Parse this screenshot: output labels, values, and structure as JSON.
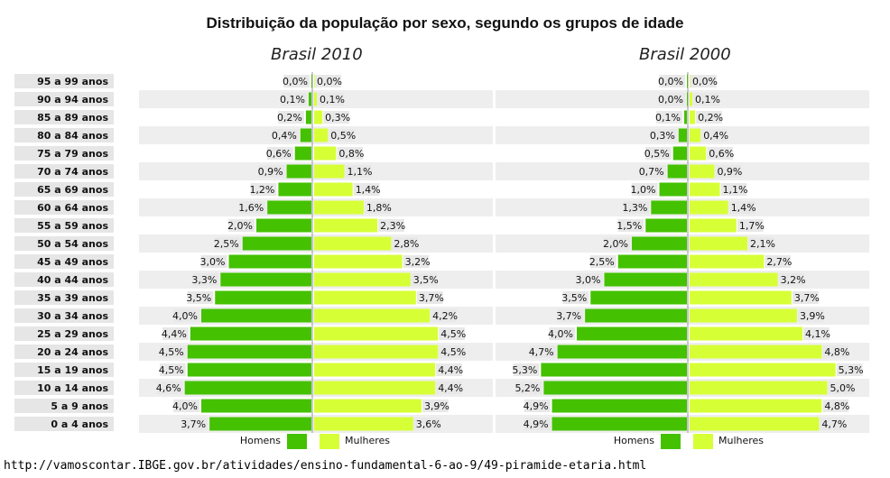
{
  "title": "Distribuição da população por sexo, segundo os grupos de idade",
  "footer_url": "http://vamoscontar.IBGE.gov.br/atividades/ensino-fundamental-6-ao-9/49-piramide-etaria.html",
  "colors": {
    "men": "#44c100",
    "women": "#d7ff36",
    "stripe": "#eeeeee",
    "label_bg": "#e6e6e6"
  },
  "chart_data": [
    {
      "type": "bar",
      "subtype": "population-pyramid",
      "title": "Brasil 2010",
      "categories": [
        "95 a 99 anos",
        "90 a 94 anos",
        "85 a 89 anos",
        "80 a 84 anos",
        "75 a 79 anos",
        "70 a 74 anos",
        "65 a 69 anos",
        "60 a 64 anos",
        "55 a 59 anos",
        "50 a 54 anos",
        "45 a 49 anos",
        "40 a 44 anos",
        "35 a 39 anos",
        "30 a 34 anos",
        "25 a 29 anos",
        "20 a 24 anos",
        "15 a 19 anos",
        "10 a 14 anos",
        "5 a 9 anos",
        "0 a 4 anos"
      ],
      "series": [
        {
          "name": "Homens",
          "values": [
            0.0,
            0.1,
            0.2,
            0.4,
            0.6,
            0.9,
            1.2,
            1.6,
            2.0,
            2.5,
            3.0,
            3.3,
            3.5,
            4.0,
            4.4,
            4.5,
            4.5,
            4.6,
            4.0,
            3.7
          ],
          "labels": [
            "0,0%",
            "0,1%",
            "0,2%",
            "0,4%",
            "0,6%",
            "0,9%",
            "1,2%",
            "1,6%",
            "2,0%",
            "2,5%",
            "3,0%",
            "3,3%",
            "3,5%",
            "4,0%",
            "4,4%",
            "4,5%",
            "4,5%",
            "4,6%",
            "4,0%",
            "3,7%"
          ]
        },
        {
          "name": "Mulheres",
          "values": [
            0.0,
            0.1,
            0.3,
            0.5,
            0.8,
            1.1,
            1.4,
            1.8,
            2.3,
            2.8,
            3.2,
            3.5,
            3.7,
            4.2,
            4.5,
            4.5,
            4.4,
            4.4,
            3.9,
            3.6
          ],
          "labels": [
            "0,0%",
            "0,1%",
            "0,3%",
            "0,5%",
            "0,8%",
            "1,1%",
            "1,4%",
            "1,8%",
            "2,3%",
            "2,8%",
            "3,2%",
            "3,5%",
            "3,7%",
            "4,2%",
            "4,5%",
            "4,5%",
            "4,4%",
            "4,4%",
            "3,9%",
            "3,6%"
          ]
        }
      ],
      "legend": "bottom"
    },
    {
      "type": "bar",
      "subtype": "population-pyramid",
      "title": "Brasil 2000",
      "categories": [
        "95 a 99 anos",
        "90 a 94 anos",
        "85 a 89 anos",
        "80 a 84 anos",
        "75 a 79 anos",
        "70 a 74 anos",
        "65 a 69 anos",
        "60 a 64 anos",
        "55 a 59 anos",
        "50 a 54 anos",
        "45 a 49 anos",
        "40 a 44 anos",
        "35 a 39 anos",
        "30 a 34 anos",
        "25 a 29 anos",
        "20 a 24 anos",
        "15 a 19 anos",
        "10 a 14 anos",
        "5 a 9 anos",
        "0 a 4 anos"
      ],
      "series": [
        {
          "name": "Homens",
          "values": [
            0.0,
            0.0,
            0.1,
            0.3,
            0.5,
            0.7,
            1.0,
            1.3,
            1.5,
            2.0,
            2.5,
            3.0,
            3.5,
            3.7,
            4.0,
            4.7,
            5.3,
            5.2,
            4.9,
            4.9
          ],
          "labels": [
            "0,0%",
            "0,0%",
            "0,1%",
            "0,3%",
            "0,5%",
            "0,7%",
            "1,0%",
            "1,3%",
            "1,5%",
            "2,0%",
            "2,5%",
            "3,0%",
            "3,5%",
            "3,7%",
            "4,0%",
            "4,7%",
            "5,3%",
            "5,2%",
            "4,9%",
            "4,9%"
          ]
        },
        {
          "name": "Mulheres",
          "values": [
            0.0,
            0.1,
            0.2,
            0.4,
            0.6,
            0.9,
            1.1,
            1.4,
            1.7,
            2.1,
            2.7,
            3.2,
            3.7,
            3.9,
            4.1,
            4.8,
            5.3,
            5.0,
            4.8,
            4.7
          ],
          "labels": [
            "0,0%",
            "0,1%",
            "0,2%",
            "0,4%",
            "0,6%",
            "0,9%",
            "1,1%",
            "1,4%",
            "1,7%",
            "2,1%",
            "2,7%",
            "3,2%",
            "3,7%",
            "3,9%",
            "4,1%",
            "4,8%",
            "5,3%",
            "5,0%",
            "4,8%",
            "4,7%"
          ]
        }
      ],
      "legend": "bottom"
    }
  ]
}
